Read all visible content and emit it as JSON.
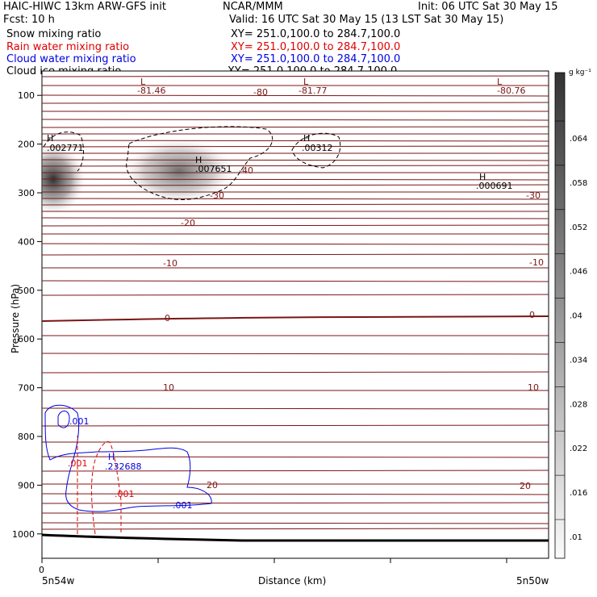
{
  "header": {
    "model": "HAIC-HIWC 13km ARW-GFS init",
    "org": "NCAR/MMM",
    "init": "Init: 06 UTC Sat 30 May 15",
    "fcst": "Fcst:   10 h",
    "valid": "Valid: 16 UTC Sat 30 May 15 (13 LST Sat 30 May 15)"
  },
  "fields": [
    {
      "name": "Snow mixing ratio",
      "xy": "XY= 251.0,100.0 to 284.7,100.0",
      "color": "#000000"
    },
    {
      "name": "Rain water mixing ratio",
      "xy": "XY= 251.0,100.0 to 284.7,100.0",
      "color": "#e00000"
    },
    {
      "name": "Cloud water mixing ratio",
      "xy": "XY= 251.0,100.0 to 284.7,100.0",
      "color": "#0000e0"
    },
    {
      "name": "Cloud ice mixing ratio",
      "xy": "XY= 251.0,100.0 to 284.7,100.0",
      "color": "#000000"
    }
  ],
  "chart_data": {
    "type": "cross-section",
    "ylabel": "Pressure (hPa)",
    "xlabel": "Distance (km)",
    "x_start_label": "0",
    "x_left_label": "5n54w",
    "x_right_label": "5n50w",
    "y_ticks": [
      100,
      200,
      300,
      400,
      500,
      600,
      700,
      800,
      900,
      1000
    ],
    "ylim": [
      1050,
      50
    ],
    "colorbar": {
      "unit": "g kg⁻¹",
      "ticks": [
        ".064",
        ".058",
        ".052",
        ".046",
        ".04",
        ".034",
        ".028",
        ".022",
        ".016",
        ".01"
      ]
    },
    "temperature_labels": [
      "-81.46",
      "-80",
      "-81.77",
      "-80.76",
      "-40",
      "-30",
      "-30",
      "-20",
      "-10",
      "-10",
      "0",
      "0",
      "10",
      "10",
      "20",
      "20"
    ],
    "extrema": [
      {
        "type": "L",
        "value": ""
      },
      {
        "type": "L",
        "value": ""
      },
      {
        "type": "L",
        "value": ""
      },
      {
        "type": "H",
        "value": ".002771"
      },
      {
        "type": "H",
        "value": ".007651"
      },
      {
        "type": "H",
        "value": ".00312"
      },
      {
        "type": "H",
        "value": ".000691"
      },
      {
        "type": "H",
        "value": ".232688"
      }
    ],
    "contour_labels": {
      "cloud_water": [
        ".001",
        ".001"
      ],
      "rain_water": [
        ".001",
        ".001"
      ]
    },
    "colors": {
      "temperature": "#7a1515",
      "rain": "#e00000",
      "cloud_water": "#0000e0",
      "terrain": "#000000"
    }
  }
}
